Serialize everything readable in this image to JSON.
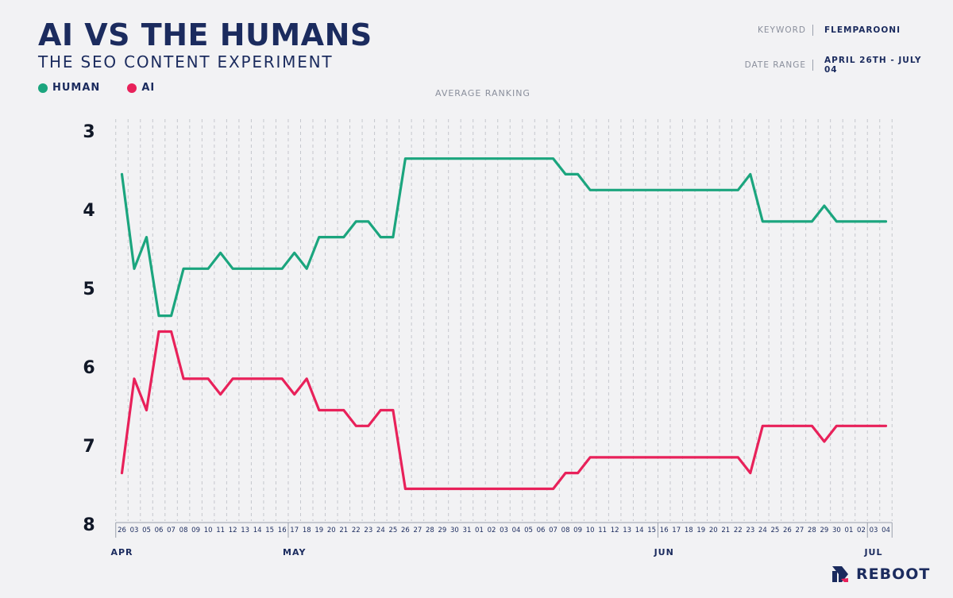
{
  "header": {
    "title": "AI VS THE HUMANS",
    "subtitle": "THE SEO CONTENT EXPERIMENT",
    "keyword_label": "KEYWORD",
    "keyword_value": "FLEMPAROONI",
    "date_label": "DATE  RANGE",
    "date_value": "APRIL 26TH - JULY 04"
  },
  "logo": {
    "text": "REBOOT"
  },
  "colors": {
    "human": "#1ba57e",
    "ai": "#e8215a",
    "navy": "#1b2b5e"
  },
  "chart_data": {
    "type": "line",
    "title": "AVERAGE RANKING",
    "ylim": [
      3,
      8
    ],
    "y_inverted": true,
    "y_ticks": [
      3,
      4,
      5,
      6,
      7,
      8
    ],
    "grid": "vertical dashed",
    "legend_position": "top-left",
    "categories": [
      "26",
      "03",
      "05",
      "06",
      "07",
      "08",
      "09",
      "10",
      "11",
      "12",
      "13",
      "14",
      "15",
      "16",
      "17",
      "18",
      "19",
      "20",
      "21",
      "22",
      "23",
      "24",
      "25",
      "26",
      "27",
      "28",
      "29",
      "30",
      "31",
      "01",
      "02",
      "03",
      "04",
      "05",
      "06",
      "07",
      "08",
      "09",
      "10",
      "11",
      "12",
      "13",
      "14",
      "15",
      "16",
      "17",
      "18",
      "19",
      "20",
      "21",
      "22",
      "23",
      "24",
      "25",
      "26",
      "27",
      "28",
      "29",
      "30",
      "01",
      "02",
      "03",
      "04"
    ],
    "months": [
      {
        "label": "APR",
        "index": 0
      },
      {
        "label": "MAY",
        "index": 14
      },
      {
        "label": "JUN",
        "index": 44
      },
      {
        "label": "JUL",
        "index": 61
      }
    ],
    "series": [
      {
        "name": "HUMAN",
        "values": [
          3.55,
          4.75,
          4.35,
          5.35,
          5.35,
          4.75,
          4.75,
          4.75,
          4.55,
          4.75,
          4.75,
          4.75,
          4.75,
          4.75,
          4.55,
          4.75,
          4.35,
          4.35,
          4.35,
          4.15,
          4.15,
          4.35,
          4.35,
          3.35,
          3.35,
          3.35,
          3.35,
          3.35,
          3.35,
          3.35,
          3.35,
          3.35,
          3.35,
          3.35,
          3.35,
          3.35,
          3.55,
          3.55,
          3.75,
          3.75,
          3.75,
          3.75,
          3.75,
          3.75,
          3.75,
          3.75,
          3.75,
          3.75,
          3.75,
          3.75,
          3.75,
          3.55,
          4.15,
          4.15,
          4.15,
          4.15,
          4.15,
          3.95,
          4.15,
          4.15,
          4.15,
          4.15,
          4.15
        ]
      },
      {
        "name": "AI",
        "values": [
          7.35,
          6.15,
          6.55,
          5.55,
          5.55,
          6.15,
          6.15,
          6.15,
          6.35,
          6.15,
          6.15,
          6.15,
          6.15,
          6.15,
          6.35,
          6.15,
          6.55,
          6.55,
          6.55,
          6.75,
          6.75,
          6.55,
          6.55,
          7.55,
          7.55,
          7.55,
          7.55,
          7.55,
          7.55,
          7.55,
          7.55,
          7.55,
          7.55,
          7.55,
          7.55,
          7.55,
          7.35,
          7.35,
          7.15,
          7.15,
          7.15,
          7.15,
          7.15,
          7.15,
          7.15,
          7.15,
          7.15,
          7.15,
          7.15,
          7.15,
          7.15,
          7.35,
          6.75,
          6.75,
          6.75,
          6.75,
          6.75,
          6.95,
          6.75,
          6.75,
          6.75,
          6.75,
          6.75
        ]
      }
    ]
  }
}
